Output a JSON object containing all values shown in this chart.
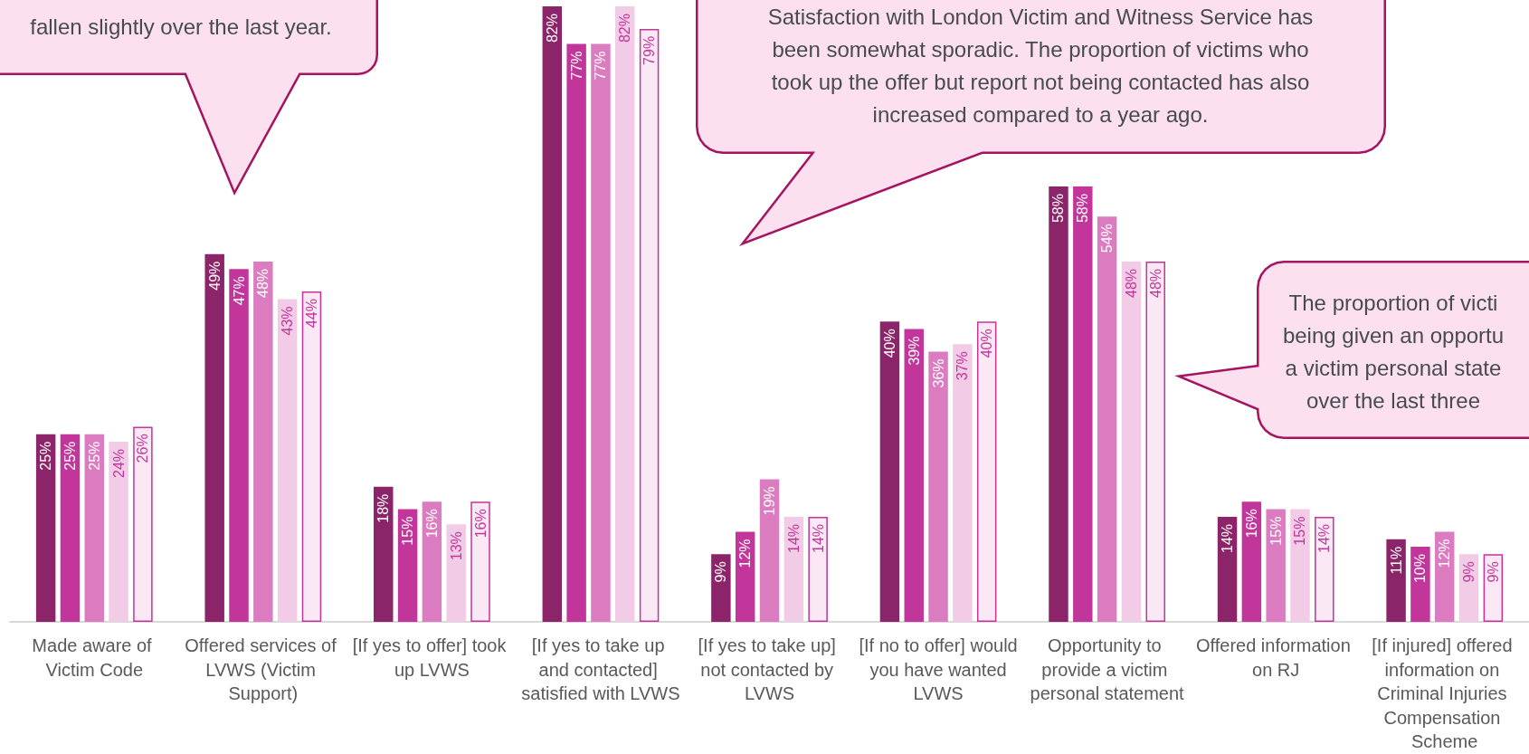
{
  "chart_data": {
    "type": "bar",
    "categories": [
      "Made aware of Victim Code",
      "Offered services of LVWS (Victim Support)",
      "[If yes to offer] took up LVWS",
      "[If yes to take up and contacted] satisfied with LVWS",
      "[If yes to take up] not contacted by LVWS",
      "[If no to offer] would you have wanted LVWS",
      "Opportunity to provide a victim personal statement",
      "Offered information on RJ",
      "[If injured] offered information on Criminal Injuries Compensation Scheme"
    ],
    "series": [
      {
        "color": "#8b2468",
        "values": [
          25,
          49,
          18,
          82,
          9,
          40,
          58,
          14,
          11
        ],
        "value_labels": [
          "25%",
          "49%",
          "18%",
          "82%",
          "9%",
          "40%",
          "58%",
          "14%",
          "11%"
        ]
      },
      {
        "color": "#c2369b",
        "values": [
          25,
          47,
          15,
          77,
          12,
          39,
          58,
          16,
          10
        ],
        "value_labels": [
          "25%",
          "47%",
          "15%",
          "77%",
          "12%",
          "39%",
          "58%",
          "16%",
          "10%"
        ]
      },
      {
        "color": "#dc7cc0",
        "values": [
          25,
          48,
          16,
          77,
          19,
          36,
          54,
          15,
          12
        ],
        "value_labels": [
          "25%",
          "48%",
          "16%",
          "77%",
          "19%",
          "36%",
          "54%",
          "15%",
          "12%"
        ]
      },
      {
        "color": "#f2cbe6",
        "values": [
          24,
          43,
          13,
          82,
          14,
          37,
          48,
          15,
          9
        ],
        "value_labels": [
          "24%",
          "43%",
          "13%",
          "82%",
          "14%",
          "37%",
          "48%",
          "15%",
          "9%"
        ]
      },
      {
        "color": "#fae8f4",
        "values": [
          26,
          44,
          16,
          79,
          14,
          40,
          48,
          14,
          9
        ],
        "value_labels": [
          "26%",
          "44%",
          "16%",
          "79%",
          "14%",
          "40%",
          "48%",
          "14%",
          "9%"
        ]
      }
    ],
    "annotations": [
      "fallen slightly over the last year.",
      "Satisfaction with London Victim and Witness Service has\nbeen somewhat sporadic. The proportion of victims who\ntook up the offer but report not being contacted has also\nincreased compared to a year ago.",
      "The proportion of victi\nbeing given an opportu\na victim personal state\nover the last three"
    ]
  }
}
